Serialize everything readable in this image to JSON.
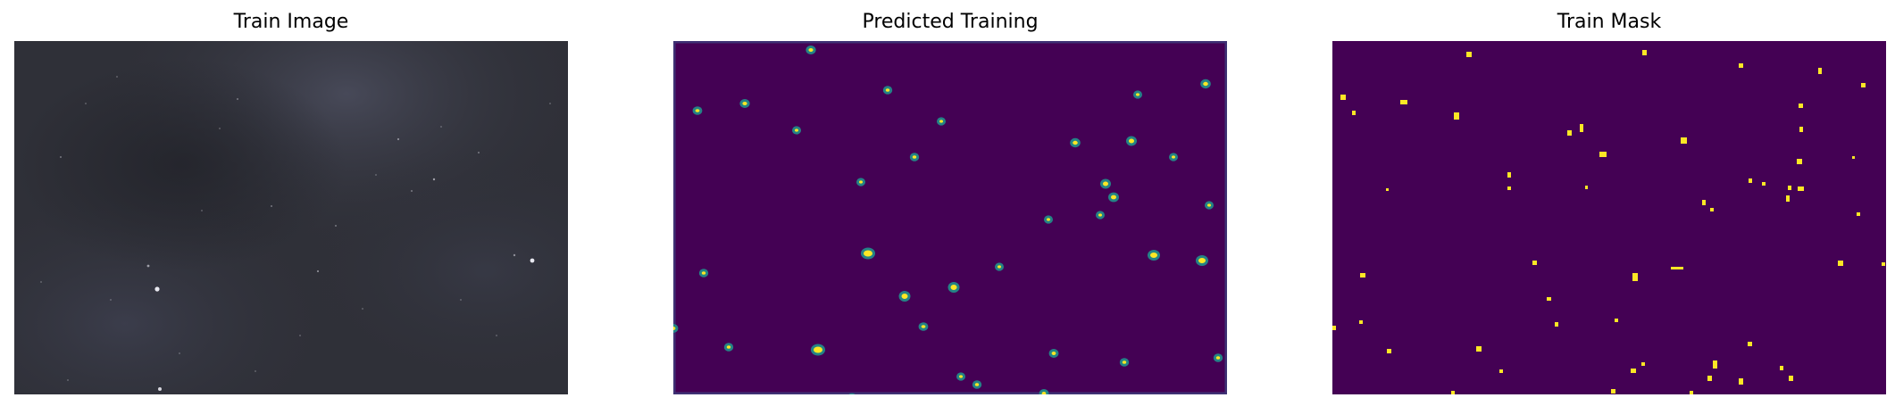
{
  "panels": [
    {
      "title": "Train Image",
      "background": "#2f3038",
      "spot_color": "#e8e8f0"
    },
    {
      "title": "Predicted Training",
      "background": "#440154",
      "spot_color": "#fde725"
    },
    {
      "title": "Train Mask",
      "background": "#440154",
      "spot_color": "#fde725"
    }
  ]
}
